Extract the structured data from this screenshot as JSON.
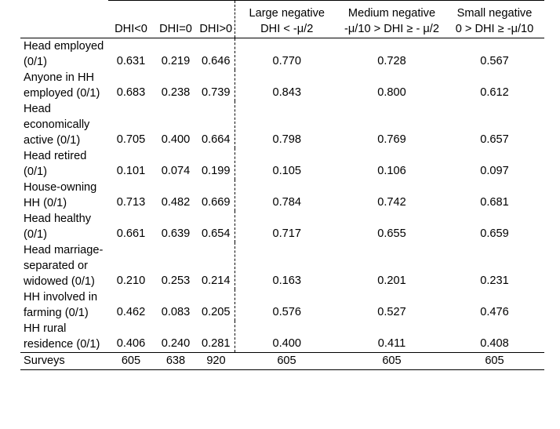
{
  "table": {
    "headers": {
      "dhi_lt0": "DHI<0",
      "dhi_eq0": "DHI=0",
      "dhi_gt0": "DHI>0",
      "large_neg": {
        "line1": "Large negative",
        "line2": "DHI < -μ/2"
      },
      "medium_neg": {
        "line1": "Medium negative",
        "line2": "-μ/10 > DHI ≥ - μ/2"
      },
      "small_neg": {
        "line1": "Small negative",
        "line2": "0 > DHI ≥ -μ/10"
      }
    },
    "rows": [
      {
        "label": "Head employed (0/1)",
        "values": [
          "0.631",
          "0.219",
          "0.646",
          "0.770",
          "0.728",
          "0.567"
        ]
      },
      {
        "label": "Anyone in HH employed (0/1)",
        "values": [
          "0.683",
          "0.238",
          "0.739",
          "0.843",
          "0.800",
          "0.612"
        ]
      },
      {
        "label": "Head economically active (0/1)",
        "values": [
          "0.705",
          "0.400",
          "0.664",
          "0.798",
          "0.769",
          "0.657"
        ]
      },
      {
        "label": "Head retired (0/1)",
        "values": [
          "0.101",
          "0.074",
          "0.199",
          "0.105",
          "0.106",
          "0.097"
        ]
      },
      {
        "label": "House-owning HH (0/1)",
        "values": [
          "0.713",
          "0.482",
          "0.669",
          "0.784",
          "0.742",
          "0.681"
        ]
      },
      {
        "label": "Head healthy (0/1)",
        "values": [
          "0.661",
          "0.639",
          "0.654",
          "0.717",
          "0.655",
          "0.659"
        ]
      },
      {
        "label": "Head marriage-separated or widowed (0/1)",
        "values": [
          "0.210",
          "0.253",
          "0.214",
          "0.163",
          "0.201",
          "0.231"
        ]
      },
      {
        "label": "HH involved in farming (0/1)",
        "values": [
          "0.462",
          "0.083",
          "0.205",
          "0.576",
          "0.527",
          "0.476"
        ]
      },
      {
        "label": "HH rural residence (0/1)",
        "values": [
          "0.406",
          "0.240",
          "0.281",
          "0.400",
          "0.411",
          "0.408"
        ]
      }
    ],
    "footer": {
      "label": "Surveys",
      "values": [
        "605",
        "638",
        "920",
        "605",
        "605",
        "605"
      ]
    }
  }
}
